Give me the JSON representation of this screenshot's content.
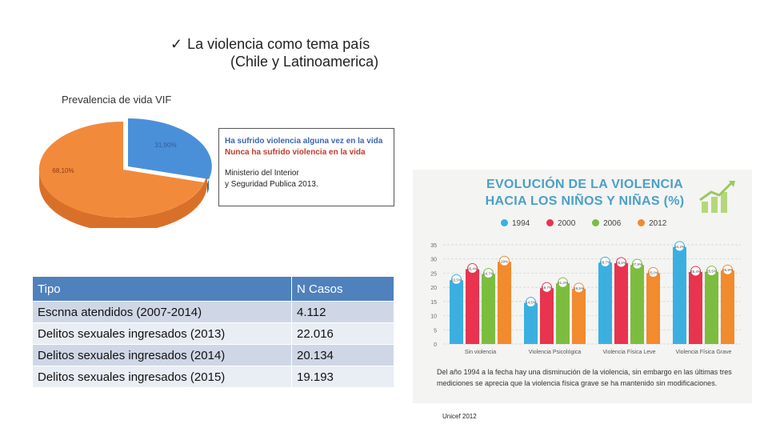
{
  "title": {
    "check_icon": "check-icon",
    "line1": "La violencia como tema país",
    "line2": "(Chile y Latinoamerica)"
  },
  "prevalence": {
    "label": "Prevalencia de vida VIF",
    "pie_values": [
      {
        "label": "31,90%",
        "value": 31.9,
        "color": "#4a90d9"
      },
      {
        "label": "68,10%",
        "value": 68.1,
        "color": "#f28a3c"
      }
    ],
    "legend": {
      "item1": "Ha sufrido violencia alguna vez en la vida",
      "item2": "Nunca ha sufrido violencia en la vida",
      "source_line1": "Ministerio del Interior",
      "source_line2": "y Seguridad Publica 2013."
    }
  },
  "table": {
    "headers": [
      "Tipo",
      "N Casos"
    ],
    "rows": [
      {
        "tipo": "Escnna atendidos   (2007-2014)",
        "casos": "4.112"
      },
      {
        "tipo": "Delitos sexuales ingresados  (2013)",
        "casos": "22.016"
      },
      {
        "tipo": "Delitos sexuales ingresados   (2014)",
        "casos": "20.134"
      },
      {
        "tipo": "Delitos sexuales ingresados   (2015)",
        "casos": "19.193"
      }
    ]
  },
  "chart_data": {
    "type": "bar",
    "title": "EVOLUCIÓN DE LA VIOLENCIA HACIA LOS NIÑOS Y NIÑAS (%)",
    "categories": [
      "Sin violencia",
      "Violencia Psicológica",
      "Violencia Física Leve",
      "Violencia Física Grave"
    ],
    "series": [
      {
        "name": "1994",
        "color": "#3bb0e0",
        "values": [
          22.5,
          14.5,
          28.7,
          34.2
        ],
        "labels": [
          "22,5%",
          "14,5%",
          "28,7%",
          "34,2%"
        ]
      },
      {
        "name": "2000",
        "color": "#e8344e",
        "values": [
          26.4,
          19.7,
          28.5,
          25.4
        ],
        "labels": [
          "26,4%",
          "19,7%",
          "28,5%",
          "25,4%"
        ]
      },
      {
        "name": "2006",
        "color": "#7cbd3f",
        "values": [
          24.7,
          21.4,
          27.9,
          25.5
        ],
        "labels": [
          "24,7%",
          "21,4%",
          "27,9%",
          "25,5%"
        ]
      },
      {
        "name": "2012",
        "color": "#f28a2e",
        "values": [
          29.0,
          19.5,
          25.0,
          25.9
        ],
        "labels": [
          "29%",
          "19,5%",
          "25,0%",
          "25,9%"
        ]
      }
    ],
    "ylim": [
      0,
      35
    ],
    "yticks": [
      0,
      5,
      10,
      15,
      20,
      25,
      30,
      35
    ],
    "note": "Del año 1994 a la fecha hay una disminución de la violencia, sin embargo en las últimas tres mediciones se aprecia que la violencia física grave se ha mantenido sin modificaciones."
  },
  "source": "Unicef 2012"
}
